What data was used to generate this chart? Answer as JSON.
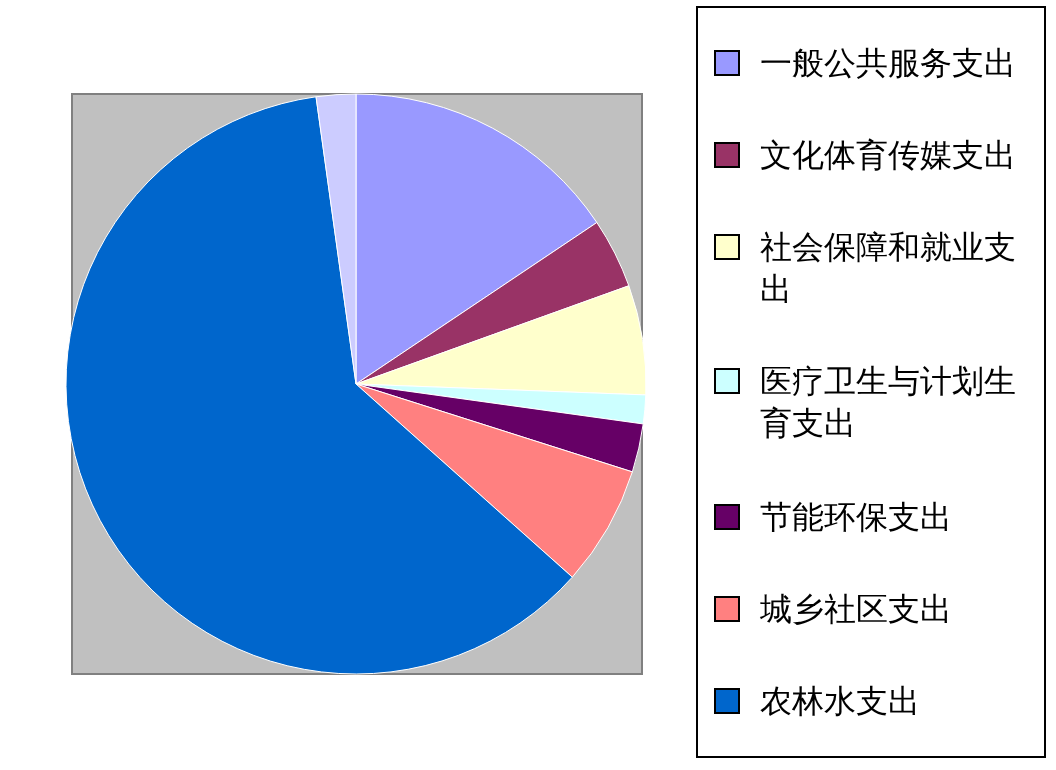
{
  "chart_data": {
    "type": "pie",
    "categories": [
      "一般公共服务支出",
      "文化体育传媒支出",
      "社会保障和就业支出",
      "医疗卫生与计划生育支出",
      "节能环保支出",
      "城乡社区支出",
      "农林水支出",
      null
    ],
    "values": [
      15.6,
      3.9,
      6.1,
      1.6,
      2.7,
      6.7,
      61.2,
      2.2
    ],
    "colors": [
      "#9999ff",
      "#993366",
      "#ffffcc",
      "#ccffff",
      "#660066",
      "#ff8080",
      "#0066cc",
      "#ccccff"
    ],
    "legend": "right"
  }
}
